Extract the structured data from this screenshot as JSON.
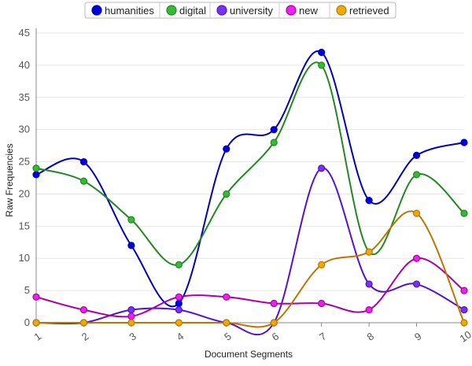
{
  "chart_data": {
    "type": "line",
    "xlabel": "Document Segments",
    "ylabel": "Raw Frequencies",
    "x": [
      1,
      2,
      3,
      4,
      5,
      6,
      7,
      8,
      9,
      10
    ],
    "ylim": [
      0,
      45
    ],
    "yticks": [
      0,
      5,
      10,
      15,
      20,
      25,
      30,
      35,
      40,
      45
    ],
    "grid": "horizontal",
    "legend_position": "top-center",
    "curve": "smooth",
    "series": [
      {
        "name": "humanities",
        "color": "#0000bb",
        "dot": "#0000dd",
        "values": [
          23,
          25,
          12,
          3,
          27,
          30,
          42,
          19,
          26,
          28
        ]
      },
      {
        "name": "digital",
        "color": "#228822",
        "dot": "#33bb33",
        "values": [
          24,
          22,
          16,
          9,
          20,
          28,
          40,
          11,
          23,
          17
        ]
      },
      {
        "name": "university",
        "color": "#5511cc",
        "dot": "#7733ee",
        "values": [
          0,
          0,
          2,
          2,
          0,
          0,
          24,
          6,
          6,
          2
        ]
      },
      {
        "name": "new",
        "color": "#aa00aa",
        "dot": "#ee22ee",
        "values": [
          4,
          2,
          1,
          4,
          4,
          3,
          3,
          2,
          10,
          5
        ]
      },
      {
        "name": "retrieved",
        "color": "#bb7700",
        "dot": "#eeaa00",
        "values": [
          0,
          0,
          0,
          0,
          0,
          0,
          9,
          11,
          17,
          0
        ]
      }
    ]
  }
}
